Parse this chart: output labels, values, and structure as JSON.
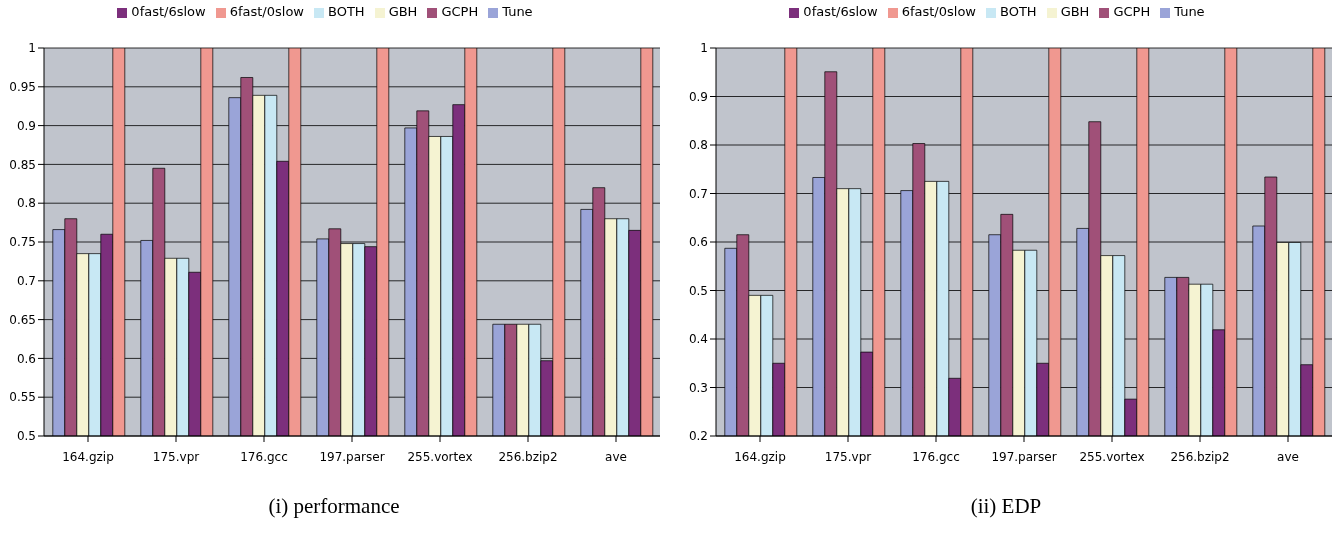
{
  "chart_data": [
    {
      "type": "bar",
      "xlabel": "(i) performance",
      "categories": [
        "164.gzip",
        "175.vpr",
        "176.gcc",
        "197.parser",
        "255.vortex",
        "256.bzip2",
        "ave"
      ],
      "series": [
        {
          "name": "Tune",
          "color": "#9aa4d8",
          "values": [
            0.766,
            0.752,
            0.936,
            0.754,
            0.897,
            0.644,
            0.792
          ]
        },
        {
          "name": "GCPH",
          "color": "#a05078",
          "values": [
            0.78,
            0.845,
            0.962,
            0.767,
            0.919,
            0.644,
            0.82
          ]
        },
        {
          "name": "GBH",
          "color": "#f5f3d2",
          "values": [
            0.735,
            0.729,
            0.939,
            0.748,
            0.886,
            0.644,
            0.78
          ]
        },
        {
          "name": "BOTH",
          "color": "#c8e8f4",
          "values": [
            0.735,
            0.729,
            0.939,
            0.748,
            0.886,
            0.644,
            0.78
          ]
        },
        {
          "name": "0fast/6slow",
          "color": "#7c2f7c",
          "values": [
            0.76,
            0.711,
            0.854,
            0.744,
            0.927,
            0.597,
            0.765
          ]
        },
        {
          "name": "6fast/0slow",
          "color": "#f09890",
          "values": [
            1,
            1,
            1,
            1,
            1,
            1,
            1
          ]
        }
      ],
      "ylim": [
        0.5,
        1
      ],
      "yticks": [
        0.5,
        0.55,
        0.6,
        0.65,
        0.7,
        0.75,
        0.8,
        0.85,
        0.9,
        0.95,
        1
      ],
      "grid": "y",
      "legend": "top"
    },
    {
      "type": "bar",
      "xlabel": "(ii) EDP",
      "categories": [
        "164.gzip",
        "175.vpr",
        "176.gcc",
        "197.parser",
        "255.vortex",
        "256.bzip2",
        "ave"
      ],
      "series": [
        {
          "name": "Tune",
          "color": "#9aa4d8",
          "values": [
            0.587,
            0.733,
            0.706,
            0.615,
            0.628,
            0.527,
            0.633
          ]
        },
        {
          "name": "GCPH",
          "color": "#a05078",
          "values": [
            0.615,
            0.951,
            0.803,
            0.657,
            0.848,
            0.527,
            0.734
          ]
        },
        {
          "name": "GBH",
          "color": "#f5f3d2",
          "values": [
            0.49,
            0.71,
            0.725,
            0.583,
            0.572,
            0.513,
            0.599
          ]
        },
        {
          "name": "BOTH",
          "color": "#c8e8f4",
          "values": [
            0.49,
            0.71,
            0.725,
            0.583,
            0.572,
            0.513,
            0.599
          ]
        },
        {
          "name": "0fast/6slow",
          "color": "#7c2f7c",
          "values": [
            0.35,
            0.373,
            0.319,
            0.35,
            0.276,
            0.419,
            0.347
          ]
        },
        {
          "name": "6fast/0slow",
          "color": "#f09890",
          "values": [
            1,
            1,
            1,
            1,
            1,
            1,
            1
          ]
        }
      ],
      "ylim": [
        0.2,
        1
      ],
      "yticks": [
        0.2,
        0.3,
        0.4,
        0.5,
        0.6,
        0.7,
        0.8,
        0.9,
        1
      ],
      "grid": "y",
      "legend": "top"
    }
  ]
}
